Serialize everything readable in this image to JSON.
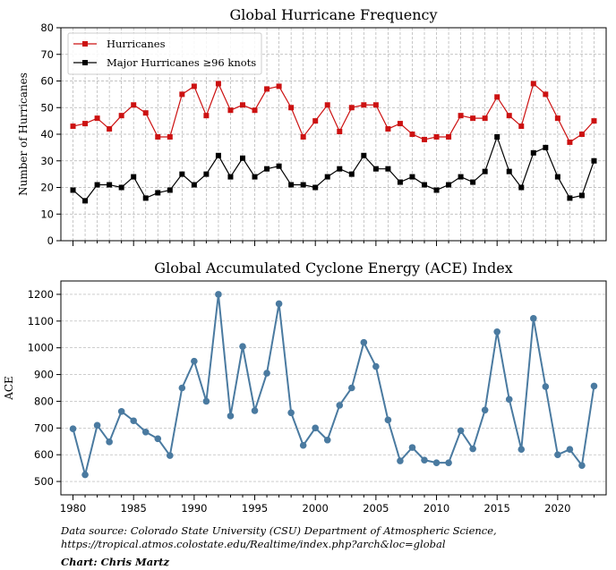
{
  "chart_data": [
    {
      "type": "line",
      "title": "Global Hurricane Frequency",
      "xlabel": "",
      "ylabel": "Number of Hurricanes",
      "ylim": [
        0,
        80
      ],
      "yticks": [
        0,
        10,
        20,
        30,
        40,
        50,
        60,
        70,
        80
      ],
      "xlim": [
        1979,
        2024
      ],
      "grid": true,
      "legend_position": "top-left",
      "x": [
        1980,
        1981,
        1982,
        1983,
        1984,
        1985,
        1986,
        1987,
        1988,
        1989,
        1990,
        1991,
        1992,
        1993,
        1994,
        1995,
        1996,
        1997,
        1998,
        1999,
        2000,
        2001,
        2002,
        2003,
        2004,
        2005,
        2006,
        2007,
        2008,
        2009,
        2010,
        2011,
        2012,
        2013,
        2014,
        2015,
        2016,
        2017,
        2018,
        2019,
        2020,
        2021,
        2022,
        2023
      ],
      "series": [
        {
          "name": "Hurricanes",
          "color": "#cc1111",
          "values": [
            43,
            44,
            46,
            42,
            47,
            51,
            48,
            39,
            39,
            55,
            58,
            47,
            59,
            49,
            51,
            49,
            57,
            58,
            50,
            39,
            45,
            51,
            41,
            50,
            51,
            51,
            42,
            44,
            40,
            38,
            39,
            39,
            47,
            46,
            46,
            54,
            47,
            43,
            59,
            55,
            46,
            37,
            40,
            45
          ]
        },
        {
          "name": "Major Hurricanes ≥96 knots",
          "color": "#000000",
          "values": [
            19,
            15,
            21,
            21,
            20,
            24,
            16,
            18,
            19,
            25,
            21,
            25,
            32,
            24,
            31,
            24,
            27,
            28,
            21,
            21,
            20,
            24,
            27,
            25,
            32,
            27,
            27,
            22,
            24,
            21,
            19,
            21,
            24,
            22,
            26,
            39,
            26,
            20,
            33,
            35,
            24,
            16,
            17,
            30
          ]
        }
      ]
    },
    {
      "type": "line",
      "title": "Global Accumulated Cyclone Energy (ACE) Index",
      "xlabel": "",
      "ylabel": "ACE",
      "ylim": [
        450,
        1250
      ],
      "yticks": [
        500,
        600,
        700,
        800,
        900,
        1000,
        1100,
        1200
      ],
      "xlim": [
        1979,
        2024
      ],
      "xticks": [
        1980,
        1985,
        1990,
        1995,
        2000,
        2005,
        2010,
        2015,
        2020
      ],
      "grid": true,
      "x": [
        1980,
        1981,
        1982,
        1983,
        1984,
        1985,
        1986,
        1987,
        1988,
        1989,
        1990,
        1991,
        1992,
        1993,
        1994,
        1995,
        1996,
        1997,
        1998,
        1999,
        2000,
        2001,
        2002,
        2003,
        2004,
        2005,
        2006,
        2007,
        2008,
        2009,
        2010,
        2011,
        2012,
        2013,
        2014,
        2015,
        2016,
        2017,
        2018,
        2019,
        2020,
        2021,
        2022,
        2023
      ],
      "series": [
        {
          "color": "#4a7aa0",
          "values": [
            697,
            525,
            710,
            648,
            762,
            727,
            685,
            660,
            597,
            850,
            950,
            800,
            1200,
            745,
            1005,
            765,
            905,
            1165,
            757,
            635,
            700,
            655,
            785,
            850,
            1020,
            930,
            730,
            577,
            627,
            580,
            570,
            570,
            690,
            622,
            767,
            1060,
            807,
            620,
            1110,
            855,
            600,
            620,
            560,
            857
          ]
        }
      ]
    }
  ],
  "footnote": {
    "line1": "Data source: Colorado State University (CSU) Department of Atmospheric Science,",
    "line2": "https://tropical.atmos.colostate.edu/Realtime/index.php?arch&loc=global",
    "credit": "Chart: Chris Martz"
  }
}
